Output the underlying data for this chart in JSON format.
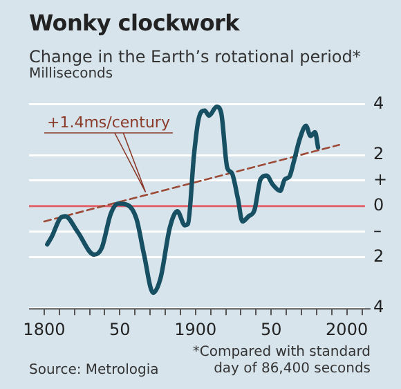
{
  "chart_data": {
    "type": "line",
    "title": "Wonky clockwork",
    "subtitle": "Change in the Earth’s rotational period*",
    "ylabel": "Milliseconds",
    "x": [
      1802,
      1805,
      1811,
      1814,
      1822,
      1833,
      1838,
      1844,
      1849,
      1855,
      1861,
      1866,
      1872,
      1877,
      1883,
      1888,
      1893,
      1895,
      1899,
      1902,
      1906,
      1909,
      1914,
      1917,
      1921,
      1924,
      1928,
      1931,
      1935,
      1939,
      1943,
      1947,
      1951,
      1956,
      1959,
      1962,
      1965,
      1969,
      1973,
      1976,
      1979,
      1981
    ],
    "series": [
      {
        "color": "#174f63",
        "values": [
          -1.5,
          -1.2,
          -0.45,
          -0.4,
          -1.0,
          -1.9,
          -1.65,
          -0.3,
          0.1,
          0.05,
          -0.5,
          -1.9,
          -3.4,
          -2.8,
          -0.85,
          -0.2,
          -0.75,
          -0.7,
          2.0,
          3.4,
          3.75,
          3.55,
          3.9,
          3.65,
          1.5,
          1.3,
          0.3,
          -0.6,
          -0.4,
          -0.15,
          1.05,
          1.2,
          0.85,
          0.6,
          1.05,
          1.15,
          1.75,
          2.65,
          3.15,
          2.75,
          2.9,
          2.3
        ]
      },
      {
        "type": "line",
        "x": [
          1800,
          1995
        ],
        "values": [
          -0.6,
          2.4
        ],
        "color": "#9c4a35",
        "line_style": "dashed"
      }
    ],
    "xlim": [
      1790,
      2012
    ],
    "xticks": [
      {
        "value": 1800,
        "label": "1800"
      },
      {
        "value": 1810,
        "label": null
      },
      {
        "value": 1820,
        "label": null
      },
      {
        "value": 1830,
        "label": null
      },
      {
        "value": 1840,
        "label": null
      },
      {
        "value": 1850,
        "label": "50"
      },
      {
        "value": 1860,
        "label": null
      },
      {
        "value": 1870,
        "label": null
      },
      {
        "value": 1880,
        "label": null
      },
      {
        "value": 1890,
        "label": null
      },
      {
        "value": 1900,
        "label": "1900"
      },
      {
        "value": 1910,
        "label": null
      },
      {
        "value": 1920,
        "label": null
      },
      {
        "value": 1930,
        "label": null
      },
      {
        "value": 1940,
        "label": null
      },
      {
        "value": 1950,
        "label": "50"
      },
      {
        "value": 1960,
        "label": null
      },
      {
        "value": 1970,
        "label": null
      },
      {
        "value": 1980,
        "label": null
      },
      {
        "value": 1990,
        "label": null
      },
      {
        "value": 2000,
        "label": "2000"
      },
      {
        "value": 2010,
        "label": null
      }
    ],
    "ylim": [
      -4,
      4
    ],
    "yticks": [
      {
        "value": -4,
        "label": "4"
      },
      {
        "value": -2,
        "label": "2"
      },
      {
        "value": -1,
        "label": "–"
      },
      0,
      {
        "value": 1,
        "label": "+"
      },
      2,
      4
    ],
    "grid": "y",
    "legend": false,
    "marker": "none",
    "ref_lines": [
      {
        "axis": "y",
        "value": 0,
        "color": "#e0626a"
      }
    ],
    "annotations": [
      {
        "text": "+1.4ms/century",
        "x": 1867,
        "y": 0.55
      },
      "*Compared with standard day of 86,400 seconds",
      "Source: Metrologia"
    ]
  }
}
